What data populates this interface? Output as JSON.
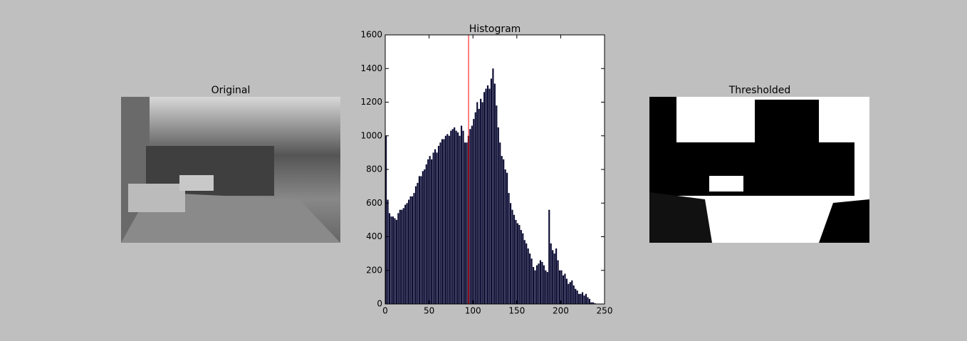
{
  "chart_data": {
    "type": "histogram",
    "title": "Histogram",
    "bins": [
      0,
      2,
      4,
      6,
      8,
      10,
      12,
      14,
      16,
      18,
      20,
      22,
      24,
      26,
      28,
      30,
      32,
      34,
      36,
      38,
      40,
      42,
      44,
      46,
      48,
      50,
      52,
      54,
      56,
      58,
      60,
      62,
      64,
      66,
      68,
      70,
      72,
      74,
      76,
      78,
      80,
      82,
      84,
      86,
      88,
      90,
      92,
      94,
      96,
      98,
      100,
      102,
      104,
      106,
      108,
      110,
      112,
      114,
      116,
      118,
      120,
      122,
      124,
      126,
      128,
      130,
      132,
      134,
      136,
      138,
      140,
      142,
      144,
      146,
      148,
      150,
      152,
      154,
      156,
      158,
      160,
      162,
      164,
      166,
      168,
      170,
      172,
      174,
      176,
      178,
      180,
      182,
      184,
      186,
      188,
      190,
      192,
      194,
      196,
      198,
      200,
      202,
      204,
      206,
      208,
      210,
      212,
      214,
      216,
      218,
      220,
      222,
      224,
      226,
      228,
      230,
      232,
      234,
      236,
      238,
      240
    ],
    "values": [
      1000,
      620,
      540,
      520,
      520,
      510,
      500,
      540,
      560,
      560,
      570,
      590,
      600,
      620,
      640,
      640,
      660,
      700,
      720,
      760,
      760,
      790,
      800,
      830,
      860,
      880,
      860,
      900,
      920,
      900,
      940,
      960,
      980,
      980,
      1000,
      1010,
      1000,
      1030,
      1040,
      1050,
      1030,
      1020,
      1000,
      1060,
      1030,
      960,
      960,
      1000,
      1040,
      1060,
      1100,
      1140,
      1200,
      1160,
      1220,
      1200,
      1260,
      1280,
      1300,
      1280,
      1340,
      1400,
      1310,
      1180,
      1050,
      960,
      880,
      860,
      800,
      780,
      660,
      600,
      560,
      530,
      500,
      480,
      470,
      440,
      420,
      380,
      360,
      330,
      300,
      270,
      220,
      200,
      230,
      240,
      260,
      250,
      230,
      200,
      190,
      560,
      360,
      320,
      300,
      330,
      260,
      200,
      200,
      170,
      180,
      150,
      120,
      130,
      140,
      110,
      90,
      80,
      60,
      60,
      70,
      50,
      60,
      40,
      30,
      10,
      10,
      5
    ],
    "color": "#0b0b33",
    "xlim": [
      0,
      250
    ],
    "xticks": [
      0,
      50,
      100,
      150,
      200,
      250
    ],
    "ylim": [
      0,
      1600
    ],
    "yticks": [
      0,
      200,
      400,
      600,
      800,
      1000,
      1200,
      1400,
      1600
    ],
    "threshold": 95,
    "threshold_color": "#ff0000"
  },
  "images": [
    {
      "title": "Original"
    },
    {
      "title": "Thresholded"
    }
  ]
}
